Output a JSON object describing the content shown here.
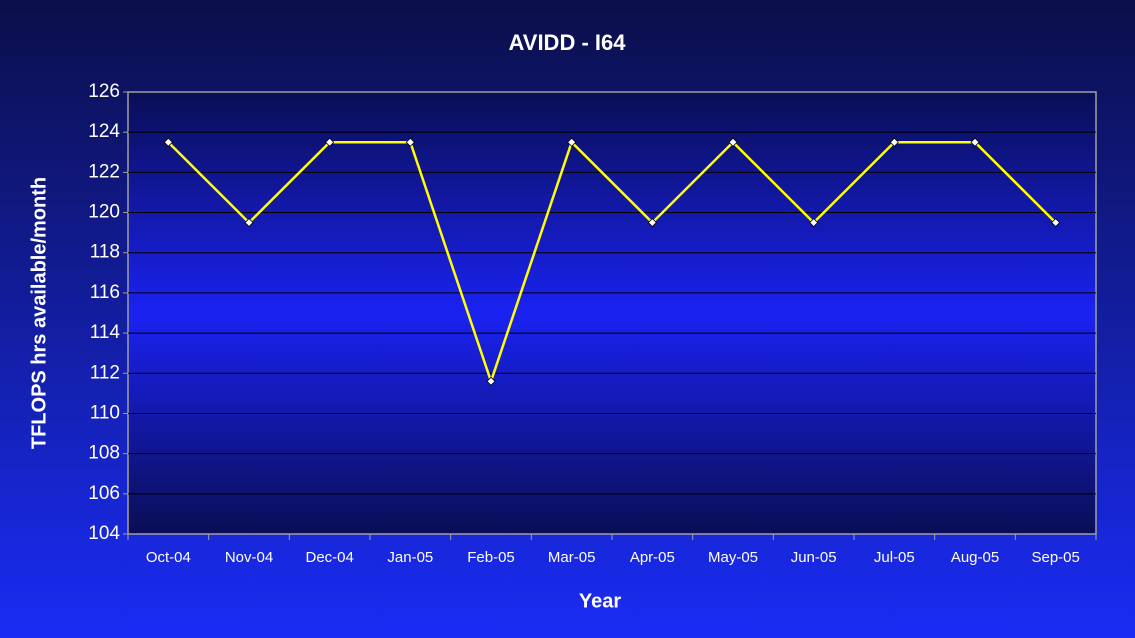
{
  "chart_data": {
    "type": "line",
    "title": "AVIDD - I64",
    "x_label": "Year",
    "y_label": "TFLOPS hrs available/month",
    "categories": [
      "Oct-04",
      "Nov-04",
      "Dec-04",
      "Jan-05",
      "Feb-05",
      "Mar-05",
      "Apr-05",
      "May-05",
      "Jun-05",
      "Jul-05",
      "Aug-05",
      "Sep-05"
    ],
    "values": [
      123.5,
      119.5,
      123.5,
      123.5,
      111.6,
      123.5,
      119.5,
      123.5,
      119.5,
      123.5,
      123.5,
      119.5
    ],
    "color": "#ffff00",
    "ylim": [
      104,
      126
    ],
    "yticks": [
      104,
      106,
      108,
      110,
      112,
      114,
      116,
      118,
      120,
      122,
      124,
      126
    ],
    "grid": true
  }
}
